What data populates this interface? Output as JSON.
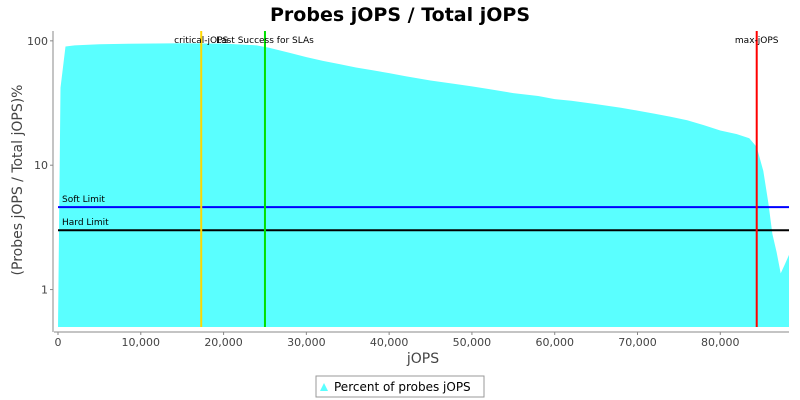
{
  "chart_data": {
    "type": "area",
    "title": "Probes jOPS / Total jOPS",
    "xlabel": "jOPS",
    "ylabel": "(Probes jOPS / Total jOPS)%",
    "y_scale": "log",
    "xlim": [
      0,
      88300
    ],
    "ylim": [
      0.5,
      120
    ],
    "x_ticks": [
      0,
      10000,
      20000,
      30000,
      40000,
      50000,
      60000,
      70000,
      80000
    ],
    "x_tick_labels": [
      "0",
      "10,000",
      "20,000",
      "30,000",
      "40,000",
      "50,000",
      "60,000",
      "70,000",
      "80,000"
    ],
    "y_ticks": [
      1,
      10,
      100
    ],
    "y_tick_labels": [
      "1",
      "10",
      "100"
    ],
    "series": [
      {
        "name": "Percent of probes jOPS",
        "color": "#5affff",
        "x": [
          0,
          300,
          900,
          2000,
          5000,
          10000,
          15000,
          20000,
          24000,
          25500,
          28000,
          30000,
          32000,
          34000,
          36000,
          38000,
          40000,
          42000,
          45000,
          48000,
          50000,
          52000,
          55000,
          58000,
          60000,
          62000,
          65000,
          68000,
          70000,
          72000,
          74000,
          76000,
          78000,
          80000,
          82000,
          83500,
          84400,
          85200,
          85800,
          86300,
          86800,
          87300,
          87800,
          88300
        ],
        "y": [
          0.5,
          42,
          90,
          92,
          94,
          95,
          95.5,
          95,
          92,
          88,
          80,
          74,
          69,
          65,
          61,
          58,
          55,
          52,
          48,
          45,
          43,
          41,
          38,
          36,
          34,
          33,
          31,
          29,
          27.5,
          26,
          24.5,
          23,
          21,
          19,
          17.8,
          16.5,
          14,
          9,
          5,
          2.8,
          2.0,
          1.35,
          1.6,
          1.9
        ]
      }
    ],
    "vertical_markers": [
      {
        "label": "critical-jOPS",
        "x": 17300,
        "color": "#ffd700"
      },
      {
        "label": "Last Success for SLAs",
        "x": 25000,
        "color": "#00e000"
      },
      {
        "label": "max-jOPS",
        "x": 84400,
        "color": "#ff0000"
      }
    ],
    "horizontal_markers": [
      {
        "label": "Soft Limit",
        "y": 4.6,
        "color": "#0000ff"
      },
      {
        "label": "Hard Limit",
        "y": 3.0,
        "color": "#000000"
      }
    ],
    "grid": false,
    "legend_position": "bottom"
  }
}
